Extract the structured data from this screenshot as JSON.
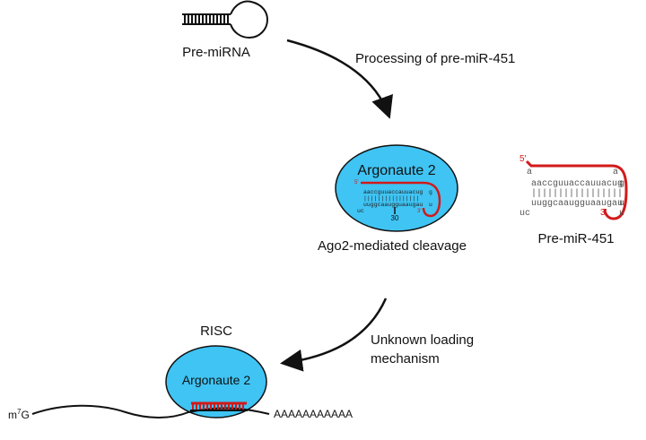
{
  "labels": {
    "pre_mirna": "Pre-miRNA",
    "processing": "Processing of pre-miR-451",
    "ago2_top": "Argonaute 2",
    "cleavage": "Ago2-mediated cleavage",
    "pre_mir451": "Pre-miR-451",
    "risc": "RISC",
    "unknown_line1": "Unknown loading",
    "unknown_line2": "mechanism",
    "ago2_bottom": "Argonaute 2",
    "m7g_base": "m",
    "m7g_sup": "7",
    "m7g_end": "G",
    "poly_a": "AAAAAAAAAAA"
  },
  "hairpin_large": {
    "five_prime": "5′",
    "three_prime": "3′",
    "loop_left": "a",
    "loop_right": "a",
    "top_strand": "aaccguuaccauuacug",
    "top_end": "g",
    "pairs": "|||||||||||||||||",
    "bottom_strand": "uuggcaaugguaaugau",
    "bottom_end": "u",
    "tail": "uc",
    "tail_end": "u"
  },
  "hairpin_small": {
    "five_prime": "5′",
    "three_prime": "3′",
    "top_strand": "aaccguuaccauuacug",
    "top_end": "g",
    "pairs": "||||||||||||||||",
    "bottom_strand": "uuggcaaugguaaugau",
    "bottom_end": "u",
    "tail": "uc",
    "cleavage_pos": "30"
  },
  "colors": {
    "ago2_fill": "#3fc4f4",
    "rna_red": "#d11a1a",
    "outline": "#111111"
  }
}
